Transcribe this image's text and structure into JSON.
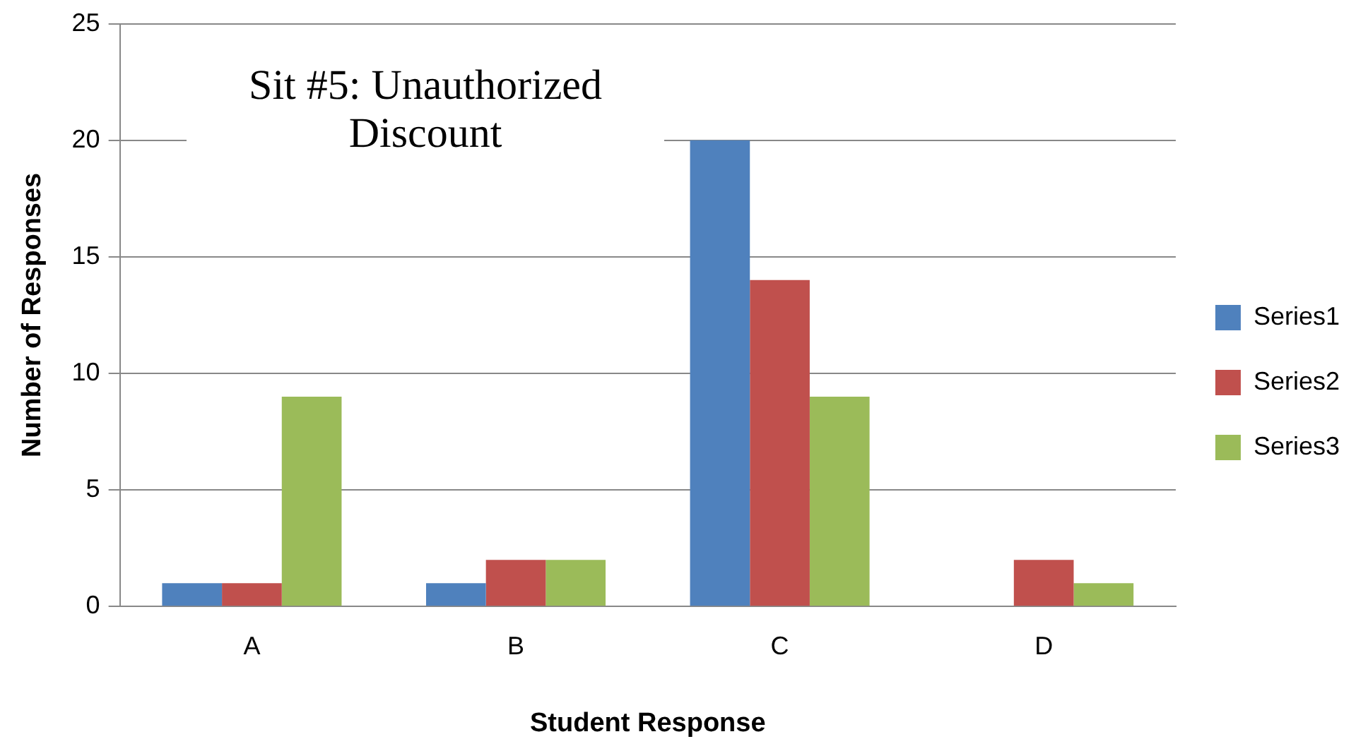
{
  "chart_data": {
    "type": "bar",
    "title": "Sit #5:  Unauthorized Discount",
    "xlabel": "Student Response",
    "ylabel": "Number of Responses",
    "categories": [
      "A",
      "B",
      "C",
      "D"
    ],
    "series": [
      {
        "name": "Series1",
        "color": "#4f81bd",
        "values": [
          1,
          1,
          20,
          0
        ]
      },
      {
        "name": "Series2",
        "color": "#c0504d",
        "values": [
          1,
          2,
          14,
          2
        ]
      },
      {
        "name": "Series3",
        "color": "#9bbb59",
        "values": [
          9,
          2,
          9,
          1
        ]
      }
    ],
    "ylim": [
      0,
      25
    ],
    "yticks": [
      0,
      5,
      10,
      15,
      20,
      25
    ],
    "grid": "y",
    "legend": "right"
  }
}
